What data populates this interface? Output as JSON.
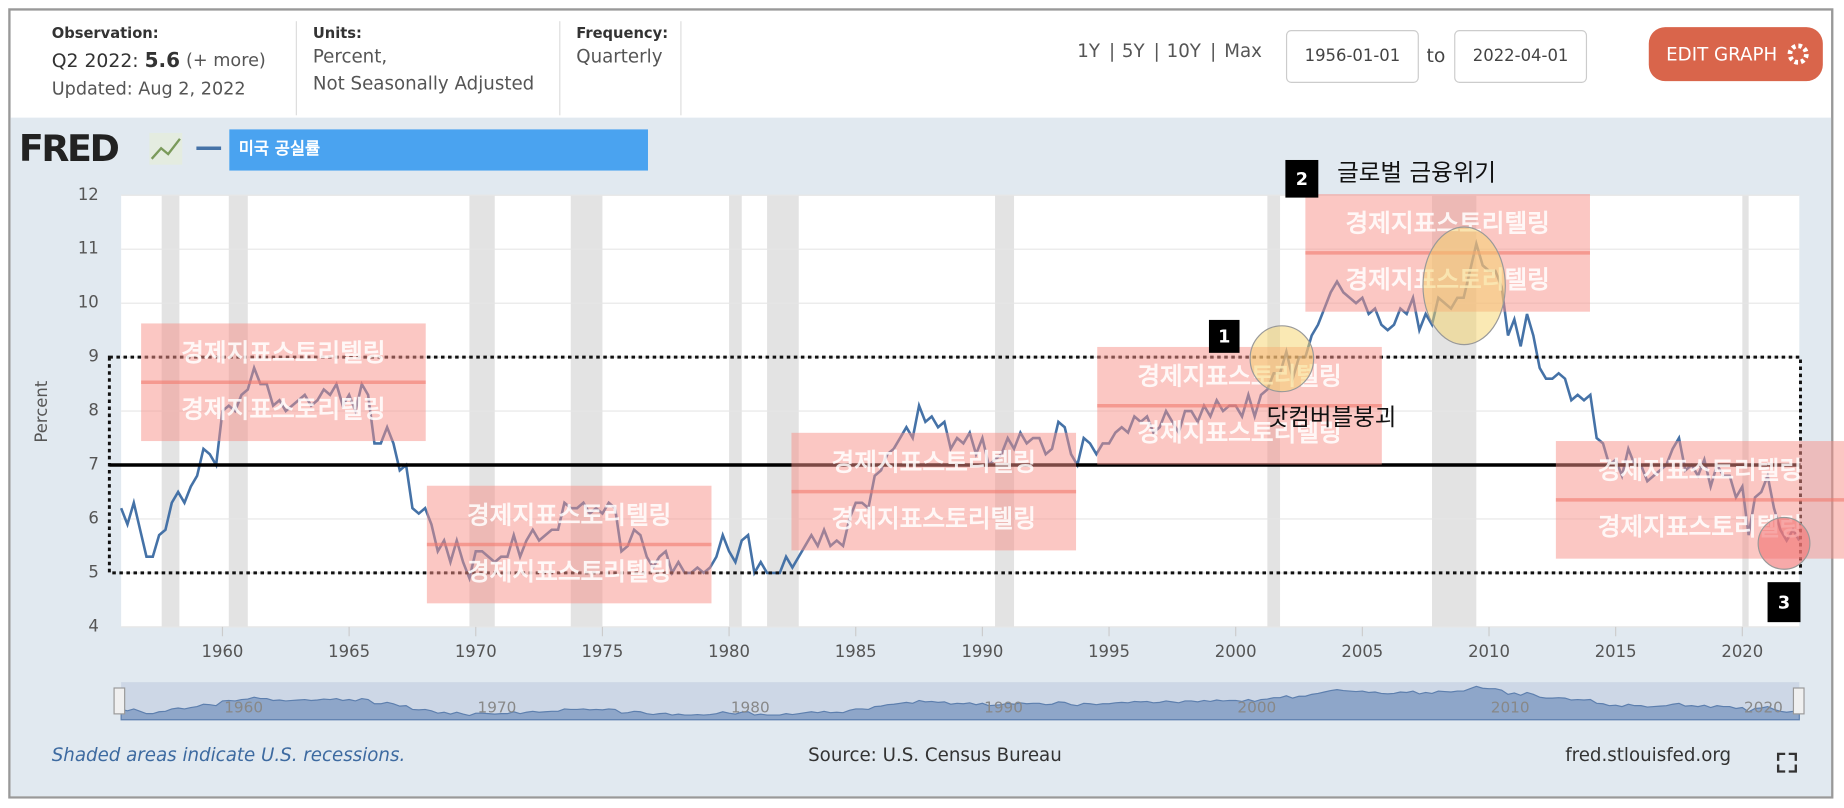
{
  "header": {
    "observation_label": "Observation:",
    "observation_period": "Q2 2022:",
    "observation_value": "5.6",
    "more": "(+ more)",
    "updated": "Updated: Aug 2, 2022",
    "units_label": "Units:",
    "units_line1": "Percent,",
    "units_line2": "Not Seasonally Adjusted",
    "frequency_label": "Frequency:",
    "frequency": "Quarterly",
    "ranges": [
      "1Y",
      "5Y",
      "10Y",
      "Max"
    ],
    "range_separator": "|",
    "start_date": "1956-01-01",
    "to": "to",
    "end_date": "2022-04-01",
    "edit_button": "EDIT GRAPH"
  },
  "logo": "FRED",
  "footer": {
    "note": "Shaded areas indicate U.S. recessions.",
    "source": "Source: U.S. Census Bureau",
    "site": "fred.stlouisfed.org"
  },
  "chart_data": {
    "type": "line",
    "ylabel": "Percent",
    "xlim": [
      1956,
      2022.25
    ],
    "ylim": [
      4,
      12
    ],
    "xticks": [
      1960,
      1965,
      1970,
      1975,
      1980,
      1985,
      1990,
      1995,
      2000,
      2005,
      2010,
      2015,
      2020
    ],
    "yticks": [
      4,
      5,
      6,
      7,
      8,
      9,
      10,
      11,
      12
    ],
    "grid": true,
    "navigator_ticks": [
      1960,
      1970,
      1980,
      1990,
      2000,
      2010,
      2020
    ],
    "recessions": [
      [
        1957.6,
        1958.3
      ],
      [
        1960.25,
        1961
      ],
      [
        1969.75,
        1970.75
      ],
      [
        1973.75,
        1975
      ],
      [
        1980,
        1980.5
      ],
      [
        1981.5,
        1982.75
      ],
      [
        1990.5,
        1991.25
      ],
      [
        2001.25,
        2001.75
      ],
      [
        2007.75,
        2009.5
      ],
      [
        2020,
        2020.25
      ]
    ],
    "reference_line": 7,
    "reference_box": [
      5,
      9
    ],
    "annotations": [
      {
        "number": "1",
        "text": "닷컴버블붕괴"
      },
      {
        "number": "2",
        "text": "글로벌 금융위기"
      },
      {
        "number": "3"
      }
    ],
    "watermark": "경제지표스토리텔링",
    "series": [
      {
        "name": "미국 공실률",
        "color": "#4572a7",
        "x": [
          1956,
          1956.25,
          1956.5,
          1956.75,
          1957,
          1957.25,
          1957.5,
          1957.75,
          1958,
          1958.25,
          1958.5,
          1958.75,
          1959,
          1959.25,
          1959.5,
          1959.75,
          1960,
          1960.25,
          1960.5,
          1960.75,
          1961,
          1961.25,
          1961.5,
          1961.75,
          1962,
          1962.25,
          1962.5,
          1962.75,
          1963,
          1963.25,
          1963.5,
          1963.75,
          1964,
          1964.25,
          1964.5,
          1964.75,
          1965,
          1965.25,
          1965.5,
          1965.75,
          1966,
          1966.25,
          1966.5,
          1966.75,
          1967,
          1967.25,
          1967.5,
          1967.75,
          1968,
          1968.25,
          1968.5,
          1968.75,
          1969,
          1969.25,
          1969.5,
          1969.75,
          1970,
          1970.25,
          1970.5,
          1970.75,
          1971,
          1971.25,
          1971.5,
          1971.75,
          1972,
          1972.25,
          1972.5,
          1972.75,
          1973,
          1973.25,
          1973.5,
          1973.75,
          1974,
          1974.25,
          1974.5,
          1974.75,
          1975,
          1975.25,
          1975.5,
          1975.75,
          1976,
          1976.25,
          1976.5,
          1976.75,
          1977,
          1977.25,
          1977.5,
          1977.75,
          1978,
          1978.25,
          1978.5,
          1978.75,
          1979,
          1979.25,
          1979.5,
          1979.75,
          1980,
          1980.25,
          1980.5,
          1980.75,
          1981,
          1981.25,
          1981.5,
          1981.75,
          1982,
          1982.25,
          1982.5,
          1982.75,
          1983,
          1983.25,
          1983.5,
          1983.75,
          1984,
          1984.25,
          1984.5,
          1984.75,
          1985,
          1985.25,
          1985.5,
          1985.75,
          1986,
          1986.25,
          1986.5,
          1986.75,
          1987,
          1987.25,
          1987.5,
          1987.75,
          1988,
          1988.25,
          1988.5,
          1988.75,
          1989,
          1989.25,
          1989.5,
          1989.75,
          1990,
          1990.25,
          1990.5,
          1990.75,
          1991,
          1991.25,
          1991.5,
          1991.75,
          1992,
          1992.25,
          1992.5,
          1992.75,
          1993,
          1993.25,
          1993.5,
          1993.75,
          1994,
          1994.25,
          1994.5,
          1994.75,
          1995,
          1995.25,
          1995.5,
          1995.75,
          1996,
          1996.25,
          1996.5,
          1996.75,
          1997,
          1997.25,
          1997.5,
          1997.75,
          1998,
          1998.25,
          1998.5,
          1998.75,
          1999,
          1999.25,
          1999.5,
          1999.75,
          2000,
          2000.25,
          2000.5,
          2000.75,
          2001,
          2001.25,
          2001.5,
          2001.75,
          2002,
          2002.25,
          2002.5,
          2002.75,
          2003,
          2003.25,
          2003.5,
          2003.75,
          2004,
          2004.25,
          2004.5,
          2004.75,
          2005,
          2005.25,
          2005.5,
          2005.75,
          2006,
          2006.25,
          2006.5,
          2006.75,
          2007,
          2007.25,
          2007.5,
          2007.75,
          2008,
          2008.25,
          2008.5,
          2008.75,
          2009,
          2009.25,
          2009.5,
          2009.75,
          2010,
          2010.25,
          2010.5,
          2010.75,
          2011,
          2011.25,
          2011.5,
          2011.75,
          2012,
          2012.25,
          2012.5,
          2012.75,
          2013,
          2013.25,
          2013.5,
          2013.75,
          2014,
          2014.25,
          2014.5,
          2014.75,
          2015,
          2015.25,
          2015.5,
          2015.75,
          2016,
          2016.25,
          2016.5,
          2016.75,
          2017,
          2017.25,
          2017.5,
          2017.75,
          2018,
          2018.25,
          2018.5,
          2018.75,
          2019,
          2019.25,
          2019.5,
          2019.75,
          2020,
          2020.25,
          2020.5,
          2020.75,
          2021,
          2021.25,
          2021.5,
          2021.75,
          2022,
          2022.25
        ],
        "values": [
          6.2,
          5.9,
          6.3,
          5.8,
          5.3,
          5.3,
          5.7,
          5.8,
          6.3,
          6.5,
          6.3,
          6.6,
          6.8,
          7.3,
          7.2,
          7.0,
          8.0,
          8.1,
          8.0,
          8.3,
          8.4,
          8.8,
          8.5,
          8.5,
          8.1,
          8.2,
          8.0,
          8.1,
          8.2,
          8.3,
          8.1,
          8.2,
          8.4,
          8.3,
          8.5,
          8.1,
          8.3,
          8.0,
          8.5,
          8.3,
          7.4,
          7.4,
          7.7,
          7.4,
          6.9,
          7.0,
          6.2,
          6.1,
          6.2,
          5.9,
          5.4,
          5.6,
          5.2,
          5.6,
          5.2,
          4.9,
          5.4,
          5.4,
          5.3,
          5.2,
          5.3,
          5.3,
          5.7,
          5.3,
          5.6,
          5.8,
          5.6,
          5.7,
          5.8,
          5.8,
          6.3,
          6.2,
          6.2,
          6.3,
          6.1,
          6.2,
          6.1,
          6.3,
          6.2,
          5.4,
          5.5,
          5.8,
          5.7,
          5.3,
          5.1,
          5.3,
          5.4,
          5.0,
          5.2,
          5.0,
          5.0,
          5.1,
          5.0,
          5.1,
          5.3,
          5.7,
          5.4,
          5.2,
          5.6,
          5.7,
          5.0,
          5.2,
          5.0,
          5.0,
          5.0,
          5.3,
          5.1,
          5.3,
          5.5,
          5.7,
          5.5,
          5.8,
          5.5,
          5.6,
          5.5,
          6.0,
          6.3,
          6.3,
          6.2,
          6.8,
          6.9,
          7.2,
          7.3,
          7.5,
          7.7,
          7.5,
          8.1,
          7.8,
          7.9,
          7.7,
          7.8,
          7.3,
          7.5,
          7.4,
          7.6,
          7.2,
          7.5,
          7.0,
          7.1,
          7.2,
          7.5,
          7.3,
          7.6,
          7.4,
          7.5,
          7.5,
          7.2,
          7.3,
          7.8,
          7.7,
          7.2,
          7.0,
          7.5,
          7.4,
          7.2,
          7.4,
          7.4,
          7.6,
          7.7,
          7.6,
          7.9,
          7.8,
          7.9,
          7.6,
          7.7,
          8.0,
          7.8,
          7.6,
          8.0,
          8.0,
          7.8,
          8.1,
          7.9,
          8.2,
          8.0,
          8.1,
          8.1,
          7.9,
          8.3,
          7.9,
          8.3,
          8.4,
          8.7,
          8.7,
          9.1,
          8.6,
          9.0,
          9.0,
          9.4,
          9.6,
          9.9,
          10.2,
          10.4,
          10.2,
          10.1,
          10.0,
          10.1,
          9.8,
          9.9,
          9.6,
          9.5,
          9.6,
          9.9,
          9.8,
          10.1,
          9.5,
          9.8,
          9.6,
          10.1,
          10.0,
          9.9,
          10.1,
          10.1,
          10.6,
          11.1,
          10.7,
          10.6,
          10.6,
          10.3,
          9.4,
          9.7,
          9.2,
          9.8,
          9.4,
          8.8,
          8.6,
          8.6,
          8.7,
          8.6,
          8.2,
          8.3,
          8.2,
          8.3,
          7.5,
          7.4,
          7.0,
          7.1,
          6.8,
          7.3,
          7.0,
          7.0,
          6.7,
          6.8,
          6.9,
          7.0,
          7.3,
          7.5,
          6.9,
          7.0,
          6.8,
          7.1,
          6.6,
          7.0,
          6.8,
          6.8,
          6.4,
          6.6,
          5.7,
          6.4,
          6.5,
          6.8,
          6.2,
          5.8,
          5.6,
          5.8,
          5.6
        ]
      }
    ]
  }
}
